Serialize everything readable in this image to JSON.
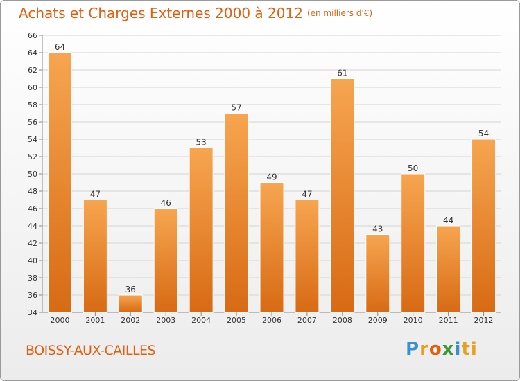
{
  "header": {
    "title": "Achats et Charges Externes 2000 à 2012",
    "unit": "(en milliers d'€)"
  },
  "footer": {
    "commune": "BOISSY-AUX-CAILLES",
    "logo_letters": [
      "P",
      "r",
      "o",
      "x",
      "i",
      "ti"
    ]
  },
  "colors": {
    "accent": "#e06010",
    "bar_light": "#f7a550",
    "bar_dark": "#d86a14"
  },
  "chart_data": {
    "type": "bar",
    "categories": [
      "2000",
      "2001",
      "2002",
      "2003",
      "2004",
      "2005",
      "2006",
      "2007",
      "2008",
      "2009",
      "2010",
      "2011",
      "2012"
    ],
    "values": [
      64,
      47,
      36,
      46,
      53,
      57,
      49,
      47,
      61,
      43,
      50,
      44,
      54
    ],
    "ylim": [
      34,
      66
    ],
    "yticks": [
      34,
      36,
      38,
      40,
      42,
      44,
      46,
      48,
      50,
      52,
      54,
      56,
      58,
      60,
      62,
      64,
      66
    ],
    "grid": true
  }
}
